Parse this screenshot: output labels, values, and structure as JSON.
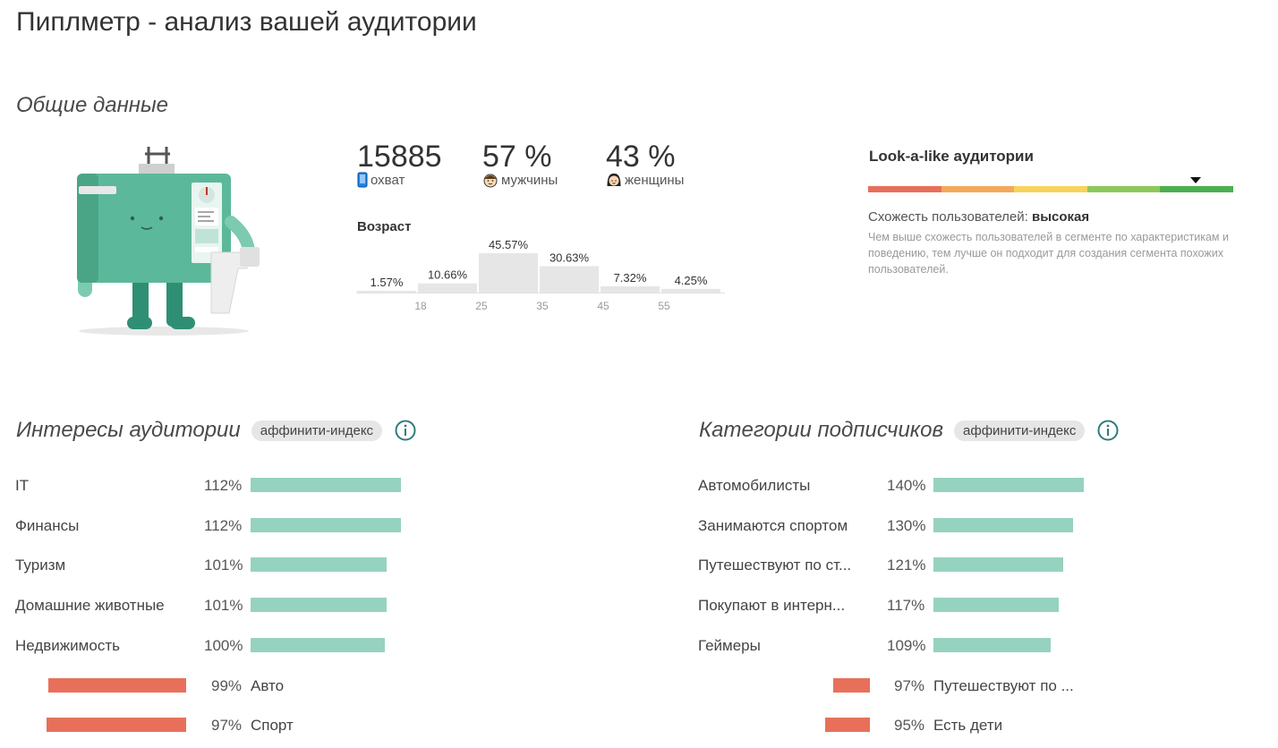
{
  "page_title": "Пиплметр - анализ вашей аудитории",
  "overview": {
    "title": "Общие данные",
    "reach": {
      "value": "15885",
      "label": "охват"
    },
    "men": {
      "value": "57 %",
      "label": "мужчины"
    },
    "women": {
      "value": "43 %",
      "label": "женщины"
    }
  },
  "age": {
    "title": "Возраст",
    "buckets": [
      {
        "label": "1.57%",
        "value": 1.57
      },
      {
        "label": "10.66%",
        "value": 10.66
      },
      {
        "label": "45.57%",
        "value": 45.57
      },
      {
        "label": "30.63%",
        "value": 30.63
      },
      {
        "label": "7.32%",
        "value": 7.32
      },
      {
        "label": "4.25%",
        "value": 4.25
      }
    ],
    "ticks": [
      "18",
      "25",
      "35",
      "45",
      "55"
    ]
  },
  "lookalike": {
    "title": "Look-a-like аудитории",
    "scale_colors": [
      "#e8705a",
      "#f5a85a",
      "#f7d35a",
      "#8dc85a",
      "#4caf50"
    ],
    "marker_segment": 5,
    "similarity_label": "Схожесть пользователей:",
    "similarity_value": "высокая",
    "description": "Чем выше схожесть пользователей в сегменте по характеристикам и поведению, тем лучше он подходит для создания сегмента похожих пользователей."
  },
  "interests": {
    "title": "Интересы аудитории",
    "badge": "аффинити-индекс",
    "positive": [
      {
        "label": "IT",
        "pct": "112%",
        "value": 112
      },
      {
        "label": "Финансы",
        "pct": "112%",
        "value": 112
      },
      {
        "label": "Туризм",
        "pct": "101%",
        "value": 101
      },
      {
        "label": "Домашние животные",
        "pct": "101%",
        "value": 101
      },
      {
        "label": "Недвижимость",
        "pct": "100%",
        "value": 100
      }
    ],
    "negative": [
      {
        "label": "Авто",
        "pct": "99%",
        "value": 99
      },
      {
        "label": "Спорт",
        "pct": "97%",
        "value": 97
      }
    ]
  },
  "categories": {
    "title": "Категории подписчиков",
    "badge": "аффинити-индекс",
    "positive": [
      {
        "label": "Автомобилисты",
        "pct": "140%",
        "value": 140
      },
      {
        "label": "Занимаются спортом",
        "pct": "130%",
        "value": 130
      },
      {
        "label": "Путешествуют по ст...",
        "pct": "121%",
        "value": 121
      },
      {
        "label": "Покупают в интерн...",
        "pct": "117%",
        "value": 117
      },
      {
        "label": "Геймеры",
        "pct": "109%",
        "value": 109
      }
    ],
    "negative": [
      {
        "label": "Путешествуют по ...",
        "pct": "97%",
        "value": 97
      },
      {
        "label": "Есть дети",
        "pct": "95%",
        "value": 95
      }
    ]
  }
}
